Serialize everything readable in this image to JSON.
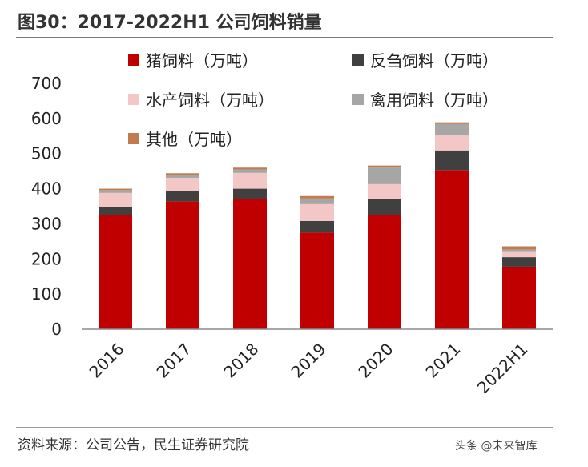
{
  "title": "图30：2017-2022H1 公司饲料销量",
  "source": "资料来源：公司公告，民生证券研究院",
  "watermark": "头条 @未来智库",
  "chart_data": {
    "type": "bar",
    "stacked": true,
    "categories": [
      "2016",
      "2017",
      "2018",
      "2019",
      "2020",
      "2021",
      "2022H1"
    ],
    "ylim": [
      0,
      700
    ],
    "yticks": [
      0,
      100,
      200,
      300,
      400,
      500,
      600,
      700
    ],
    "legend_position": "top",
    "series": [
      {
        "name": "猪饲料（万吨）",
        "color": "#C00000",
        "values": [
          326,
          364,
          370,
          275,
          324,
          453,
          178
        ]
      },
      {
        "name": "反刍饲料（万吨）",
        "color": "#404040",
        "values": [
          22,
          29,
          30,
          33,
          47,
          56,
          27
        ]
      },
      {
        "name": "水产饲料（万吨）",
        "color": "#F4C7C7",
        "values": [
          40,
          38,
          45,
          48,
          42,
          45,
          17
        ]
      },
      {
        "name": "禽用饲料（万吨）",
        "color": "#A6A6A6",
        "values": [
          8,
          8,
          10,
          16,
          47,
          30,
          5
        ]
      },
      {
        "name": "其他（万吨）",
        "color": "#C07C4E",
        "values": [
          4,
          5,
          5,
          7,
          6,
          5,
          9
        ]
      }
    ]
  }
}
